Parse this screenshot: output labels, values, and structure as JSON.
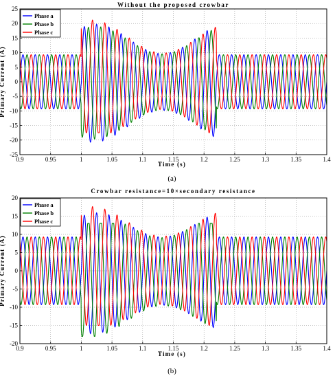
{
  "chart_data": [
    {
      "type": "line",
      "title": "Without the proposed crowbar",
      "xlabel": "Time (s)",
      "ylabel": "Primary Current (A)",
      "caption": "(a)",
      "xlim": [
        0.9,
        1.4
      ],
      "ylim": [
        -25,
        25
      ],
      "xticks": [
        0.9,
        0.95,
        1,
        1.05,
        1.1,
        1.15,
        1.2,
        1.25,
        1.3,
        1.35,
        1.4
      ],
      "xticklabels": [
        "0.9",
        "0.95",
        "1",
        "1.05",
        "1.1",
        "1.15",
        "1.2",
        "1.25",
        "1.3",
        "1.35",
        "1.4"
      ],
      "yticks": [
        -25,
        -20,
        -15,
        -10,
        -5,
        0,
        5,
        10,
        15,
        20,
        25
      ],
      "yticklabels": [
        "-25",
        "-20",
        "-15",
        "-10",
        "-5",
        "0",
        "5",
        "10",
        "15",
        "20",
        "25"
      ],
      "grid": true,
      "legend": "top-left",
      "frequency_hz": 50,
      "steady_amplitude": 9.3,
      "fault_window": [
        1.0,
        1.22
      ],
      "fault_peaks": {
        "Phase a": [
          -22,
          20.5
        ],
        "Phase b": [
          -21,
          20
        ],
        "Phase c": [
          -17.5,
          21.5
        ]
      },
      "series": [
        {
          "name": "Phase a",
          "color": "#0000ff",
          "phase_deg": 0
        },
        {
          "name": "Phase b",
          "color": "#008000",
          "phase_deg": -120
        },
        {
          "name": "Phase c",
          "color": "#ff0000",
          "phase_deg": 120
        }
      ]
    },
    {
      "type": "line",
      "title": "Crowbar resistance=10×secondary resistance",
      "xlabel": "Time (s)",
      "ylabel": "Primary Current (A)",
      "caption": "(b)",
      "xlim": [
        0.9,
        1.4
      ],
      "ylim": [
        -20,
        20
      ],
      "xticks": [
        0.9,
        0.95,
        1,
        1.05,
        1.1,
        1.15,
        1.2,
        1.25,
        1.3,
        1.35,
        1.4
      ],
      "xticklabels": [
        "0.9",
        "0.95",
        "1",
        "1.05",
        "1.1",
        "1.15",
        "1.2",
        "1.25",
        "1.3",
        "1.35",
        "1.4"
      ],
      "yticks": [
        -20,
        -15,
        -10,
        -5,
        0,
        5,
        10,
        15,
        20
      ],
      "yticklabels": [
        "-20",
        "-15",
        "-10",
        "-5",
        "0",
        "5",
        "10",
        "15",
        "20"
      ],
      "grid": true,
      "legend": "top-left",
      "frequency_hz": 50,
      "steady_amplitude": 9.3,
      "fault_window": [
        1.0,
        1.22
      ],
      "fault_peaks": {
        "Phase a": [
          -18,
          16
        ],
        "Phase b": [
          -18,
          13
        ],
        "Phase c": [
          -15,
          18
        ]
      },
      "series": [
        {
          "name": "Phase a",
          "color": "#0000ff",
          "phase_deg": 0
        },
        {
          "name": "Phase b",
          "color": "#008000",
          "phase_deg": -120
        },
        {
          "name": "Phase c",
          "color": "#ff0000",
          "phase_deg": 120
        }
      ]
    }
  ]
}
